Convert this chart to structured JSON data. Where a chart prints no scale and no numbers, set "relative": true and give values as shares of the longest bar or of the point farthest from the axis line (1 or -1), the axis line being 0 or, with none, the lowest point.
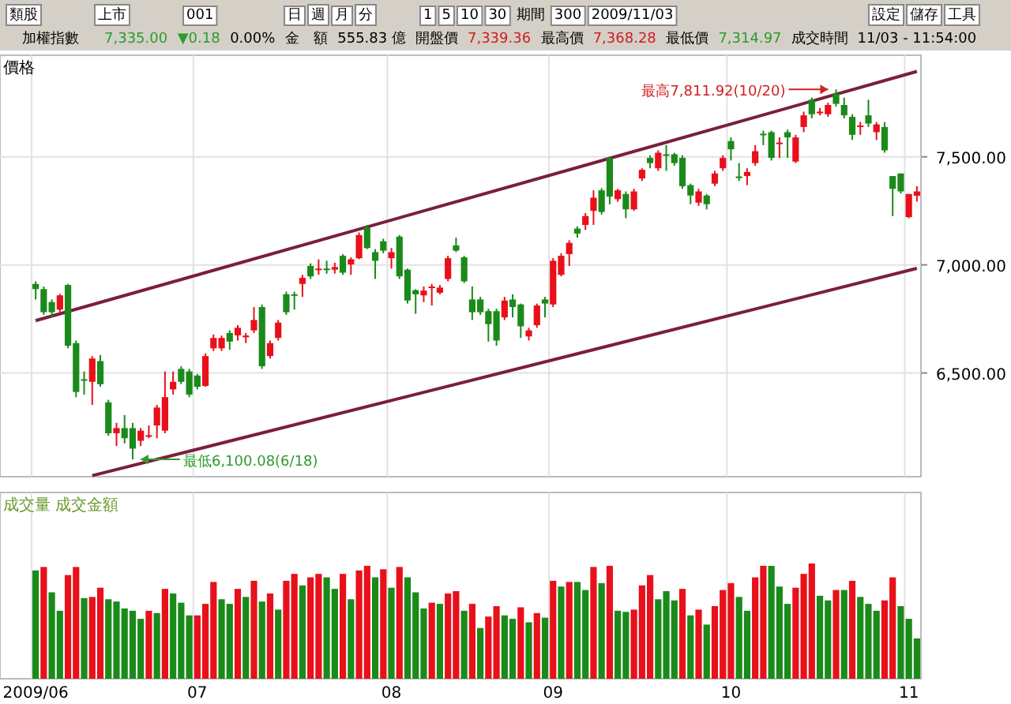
{
  "chart_data": [
    {
      "type": "candlestick",
      "ylabel": "價格",
      "categories": [
        "2009/06",
        null,
        null,
        null,
        null,
        null,
        null,
        null,
        null,
        null,
        null,
        null,
        null,
        null,
        null,
        null,
        null,
        null,
        null,
        null,
        "07",
        null,
        null,
        null,
        null,
        null,
        null,
        null,
        null,
        null,
        null,
        null,
        null,
        null,
        null,
        null,
        null,
        null,
        null,
        null,
        null,
        null,
        null,
        null,
        "08",
        null,
        null,
        null,
        null,
        null,
        null,
        null,
        null,
        null,
        null,
        null,
        null,
        null,
        null,
        null,
        null,
        null,
        null,
        null,
        "09",
        null,
        null,
        null,
        null,
        null,
        null,
        null,
        null,
        null,
        null,
        null,
        null,
        null,
        null,
        null,
        null,
        null,
        null,
        null,
        null,
        null,
        "10",
        null,
        null,
        null,
        null,
        null,
        null,
        null,
        null,
        null,
        null,
        null,
        null,
        null,
        null,
        null,
        null,
        null,
        null,
        null,
        null,
        null,
        "11",
        null
      ],
      "ohlc": [
        [
          6912,
          6924,
          6840,
          6888
        ],
        [
          6888,
          6900,
          6769,
          6781
        ],
        [
          6828,
          6840,
          6757,
          6781
        ],
        [
          6793,
          6866,
          6781,
          6859
        ],
        [
          6907,
          6912,
          6614,
          6626
        ],
        [
          6638,
          6650,
          6388,
          6412
        ],
        [
          6471,
          6507,
          6400,
          6466
        ],
        [
          6459,
          6578,
          6352,
          6567
        ],
        [
          6555,
          6583,
          6436,
          6448
        ],
        [
          6364,
          6376,
          6209,
          6221
        ],
        [
          6221,
          6269,
          6162,
          6245
        ],
        [
          6245,
          6305,
          6174,
          6198
        ],
        [
          6245,
          6269,
          6100.08,
          6150
        ],
        [
          6186,
          6245,
          6162,
          6233
        ],
        [
          6209,
          6257,
          6198,
          6212
        ],
        [
          6257,
          6352,
          6198,
          6340
        ],
        [
          6233,
          6507,
          6221,
          6388
        ],
        [
          6424,
          6507,
          6400,
          6459
        ],
        [
          6519,
          6531,
          6448,
          6459
        ],
        [
          6507,
          6519,
          6388,
          6400
        ],
        [
          6488,
          6495,
          6424,
          6436
        ],
        [
          6440,
          6590,
          6436,
          6578
        ],
        [
          6614,
          6678,
          6602,
          6662
        ],
        [
          6614,
          6673,
          6602,
          6662
        ],
        [
          6685,
          6697,
          6607,
          6645
        ],
        [
          6674,
          6721,
          6650,
          6709
        ],
        [
          6665,
          6685,
          6638,
          6673
        ],
        [
          6697,
          6805,
          6685,
          6745
        ],
        [
          6805,
          6817,
          6519,
          6531
        ],
        [
          6578,
          6650,
          6567,
          6638
        ],
        [
          6662,
          6745,
          6650,
          6733
        ],
        [
          6864,
          6876,
          6769,
          6781
        ],
        [
          6864,
          6876,
          6793,
          6857
        ],
        [
          6912,
          6954,
          6852,
          6940
        ],
        [
          6995,
          7007,
          6935,
          6947
        ],
        [
          6980,
          7026,
          6954,
          6983
        ],
        [
          6983,
          7019,
          6959,
          6978
        ],
        [
          6978,
          7010,
          6960,
          6990
        ],
        [
          7042,
          7050,
          6954,
          6964
        ],
        [
          7002,
          7035,
          6954,
          7026
        ],
        [
          7031,
          7150,
          7026,
          7138
        ],
        [
          7173,
          7185,
          7073,
          7078
        ],
        [
          7059,
          7073,
          6935,
          7019
        ],
        [
          7109,
          7121,
          7054,
          7066
        ],
        [
          7031,
          7078,
          6983,
          7059
        ],
        [
          7131,
          7138,
          6935,
          6947
        ],
        [
          6978,
          6983,
          6821,
          6835
        ],
        [
          6883,
          6888,
          6774,
          6864
        ],
        [
          6859,
          6900,
          6828,
          6881
        ],
        [
          6900,
          6912,
          6812,
          6900
        ],
        [
          6871,
          6907,
          6864,
          6895
        ],
        [
          6935,
          7042,
          6924,
          7031
        ],
        [
          7090,
          7126,
          7059,
          7066
        ],
        [
          7035,
          7042,
          6916,
          6924
        ],
        [
          6840,
          6900,
          6745,
          6781
        ],
        [
          6840,
          6852,
          6769,
          6781
        ],
        [
          6786,
          6797,
          6645,
          6726
        ],
        [
          6786,
          6797,
          6626,
          6650
        ],
        [
          6757,
          6852,
          6745,
          6835
        ],
        [
          6840,
          6864,
          6757,
          6805
        ],
        [
          6817,
          6821,
          6662,
          6716
        ],
        [
          6669,
          6709,
          6650,
          6697
        ],
        [
          6721,
          6821,
          6709,
          6812
        ],
        [
          6840,
          6852,
          6757,
          6821
        ],
        [
          6817,
          7031,
          6805,
          7019
        ],
        [
          6954,
          7054,
          6947,
          7042
        ],
        [
          7050,
          7114,
          6995,
          7102
        ],
        [
          7168,
          7178,
          7126,
          7145
        ],
        [
          7185,
          7240,
          7162,
          7226
        ],
        [
          7250,
          7345,
          7185,
          7311
        ],
        [
          7345,
          7355,
          7233,
          7245
        ],
        [
          7495,
          7500,
          7280,
          7316
        ],
        [
          7304,
          7352,
          7292,
          7345
        ],
        [
          7328,
          7340,
          7216,
          7257
        ],
        [
          7257,
          7352,
          7250,
          7340
        ],
        [
          7400,
          7447,
          7388,
          7440
        ],
        [
          7495,
          7507,
          7447,
          7471
        ],
        [
          7447,
          7530,
          7435,
          7519
        ],
        [
          7512,
          7554,
          7435,
          7510
        ],
        [
          7512,
          7519,
          7459,
          7471
        ],
        [
          7495,
          7507,
          7352,
          7364
        ],
        [
          7369,
          7376,
          7281,
          7321
        ],
        [
          7288,
          7352,
          7273,
          7340
        ],
        [
          7321,
          7328,
          7257,
          7281
        ],
        [
          7376,
          7435,
          7364,
          7423
        ],
        [
          7447,
          7507,
          7435,
          7495
        ],
        [
          7573,
          7590,
          7483,
          7535
        ],
        [
          7409,
          7471,
          7388,
          7407
        ],
        [
          7411,
          7447,
          7369,
          7430
        ],
        [
          7471,
          7554,
          7459,
          7526
        ],
        [
          7607,
          7621,
          7554,
          7600
        ],
        [
          7614,
          7621,
          7483,
          7495
        ],
        [
          7566,
          7590,
          7495,
          7566
        ],
        [
          7614,
          7626,
          7495,
          7590
        ],
        [
          7478,
          7602,
          7471,
          7590
        ],
        [
          7638,
          7709,
          7614,
          7692
        ],
        [
          7764,
          7774,
          7678,
          7697
        ],
        [
          7704,
          7726,
          7692,
          7709
        ],
        [
          7697,
          7750,
          7685,
          7740
        ],
        [
          7792,
          7811.92,
          7733,
          7745
        ],
        [
          7740,
          7774,
          7678,
          7692
        ],
        [
          7685,
          7697,
          7578,
          7602
        ],
        [
          7645,
          7661,
          7602,
          7645
        ],
        [
          7692,
          7764,
          7638,
          7654
        ],
        [
          7614,
          7661,
          7578,
          7650
        ],
        [
          7638,
          7661,
          7519,
          7530
        ],
        [
          7411,
          7411,
          7226,
          7352
        ],
        [
          7423,
          7423,
          7330,
          7340
        ],
        [
          7221,
          7328,
          7216,
          7328
        ],
        [
          7320,
          7364,
          7293,
          7340
        ]
      ],
      "series": [
        {
          "type": "line",
          "color": "#7a1f3d",
          "values": [
            6742,
            null,
            null,
            null,
            null,
            null,
            null,
            null,
            null,
            null,
            null,
            null,
            null,
            null,
            null,
            null,
            null,
            null,
            null,
            null,
            null,
            null,
            null,
            null,
            null,
            null,
            null,
            null,
            null,
            null,
            null,
            null,
            null,
            null,
            null,
            null,
            null,
            null,
            null,
            null,
            null,
            null,
            null,
            null,
            null,
            null,
            null,
            null,
            null,
            null,
            null,
            null,
            null,
            null,
            null,
            null,
            null,
            null,
            null,
            null,
            null,
            null,
            null,
            null,
            null,
            null,
            null,
            null,
            null,
            null,
            null,
            null,
            null,
            null,
            null,
            null,
            null,
            null,
            null,
            null,
            null,
            null,
            null,
            null,
            null,
            null,
            null,
            null,
            null,
            null,
            null,
            null,
            null,
            null,
            null,
            null,
            null,
            null,
            null,
            null,
            null,
            null,
            null,
            null,
            null,
            null,
            null,
            null,
            null,
            7895
          ]
        },
        {
          "type": "line",
          "color": "#7a1f3d",
          "values": [
            null,
            null,
            null,
            null,
            null,
            null,
            null,
            6025,
            null,
            null,
            null,
            null,
            null,
            null,
            null,
            null,
            null,
            null,
            null,
            null,
            null,
            null,
            null,
            null,
            null,
            null,
            null,
            null,
            null,
            null,
            null,
            null,
            null,
            null,
            null,
            null,
            null,
            null,
            null,
            null,
            null,
            null,
            null,
            null,
            null,
            null,
            null,
            null,
            null,
            null,
            null,
            null,
            null,
            null,
            null,
            null,
            null,
            null,
            null,
            null,
            null,
            null,
            null,
            null,
            null,
            null,
            null,
            null,
            null,
            null,
            null,
            null,
            null,
            null,
            null,
            null,
            null,
            null,
            null,
            null,
            null,
            null,
            null,
            null,
            null,
            null,
            null,
            null,
            null,
            null,
            null,
            null,
            null,
            null,
            null,
            null,
            null,
            null,
            null,
            null,
            null,
            null,
            null,
            null,
            null,
            null,
            null,
            null,
            null,
            6984
          ]
        }
      ],
      "annotations": [
        "類股",
        "上市",
        "001",
        "日",
        "週",
        "月",
        "分",
        "1",
        "5",
        "10",
        "30",
        "期間",
        "300",
        "2009/11/03",
        "設定",
        "儲存",
        "工具",
        "加權指數",
        "7,335.00",
        "▼0.18",
        "0.00%",
        "金　額",
        "555.83 億",
        "開盤價",
        "7,339.36",
        "最高價",
        "7,368.28",
        "最低價",
        "7,314.97",
        "成交時間",
        "11/03 - 11:54:00",
        "最高7,811.92(10/20)",
        "最低6,100.08(6/18)"
      ],
      "ylim": [
        6020,
        7970
      ],
      "yticks": [
        {
          "value": 6500,
          "label": "6,500.00"
        },
        {
          "value": 7000,
          "label": "7,000.00"
        },
        {
          "value": 7500,
          "label": "7,500.00"
        }
      ],
      "grid": true,
      "tick_labels": "y"
    },
    {
      "type": "bar",
      "relative": true,
      "ylabel": "成交量 成交金額",
      "categories": [
        "2009/06",
        null,
        null,
        null,
        null,
        null,
        null,
        null,
        null,
        null,
        null,
        null,
        null,
        null,
        null,
        null,
        null,
        null,
        null,
        null,
        "07",
        null,
        null,
        null,
        null,
        null,
        null,
        null,
        null,
        null,
        null,
        null,
        null,
        null,
        null,
        null,
        null,
        null,
        null,
        null,
        null,
        null,
        null,
        null,
        "08",
        null,
        null,
        null,
        null,
        null,
        null,
        null,
        null,
        null,
        null,
        null,
        null,
        null,
        null,
        null,
        null,
        null,
        null,
        null,
        "09",
        null,
        null,
        null,
        null,
        null,
        null,
        null,
        null,
        null,
        null,
        null,
        null,
        null,
        null,
        null,
        null,
        null,
        null,
        null,
        null,
        null,
        "10",
        null,
        null,
        null,
        null,
        null,
        null,
        null,
        null,
        null,
        null,
        null,
        null,
        null,
        null,
        null,
        null,
        null,
        null,
        null,
        null,
        null,
        "11",
        null
      ],
      "values": [
        0.94,
        0.97,
        0.75,
        0.59,
        0.9,
        0.97,
        0.7,
        0.71,
        0.79,
        0.69,
        0.67,
        0.61,
        0.59,
        0.52,
        0.59,
        0.57,
        0.78,
        0.74,
        0.66,
        0.55,
        0.55,
        0.65,
        0.84,
        0.69,
        0.65,
        0.78,
        0.71,
        0.85,
        0.67,
        0.74,
        0.6,
        0.85,
        0.91,
        0.81,
        0.88,
        0.91,
        0.88,
        0.78,
        0.91,
        0.69,
        0.94,
        0.98,
        0.88,
        0.95,
        0.79,
        0.97,
        0.88,
        0.75,
        0.61,
        0.66,
        0.65,
        0.74,
        0.76,
        0.59,
        0.65,
        0.44,
        0.54,
        0.63,
        0.55,
        0.52,
        0.62,
        0.49,
        0.57,
        0.53,
        0.85,
        0.8,
        0.84,
        0.84,
        0.77,
        0.97,
        0.83,
        0.98,
        0.59,
        0.58,
        0.6,
        0.81,
        0.9,
        0.69,
        0.76,
        0.68,
        0.78,
        0.55,
        0.6,
        0.47,
        0.63,
        0.77,
        0.83,
        0.71,
        0.59,
        0.88,
        0.98,
        0.98,
        0.8,
        0.65,
        0.79,
        0.91,
        1,
        0.72,
        0.68,
        0.77,
        0.77,
        0.85,
        0.71,
        0.65,
        0.59,
        0.68,
        0.88,
        0.63,
        0.52,
        0.35
      ],
      "colors": [
        "#1a8a1a",
        "#e8101a",
        "#1a8a1a",
        "#1a8a1a",
        "#e8101a",
        "#e8101a",
        "#1a8a1a",
        "#e8101a",
        "#e8101a",
        "#1a8a1a",
        "#1a8a1a",
        "#1a8a1a",
        "#1a8a1a",
        "#1a8a1a",
        "#e8101a",
        "#1a8a1a",
        "#e8101a",
        "#1a8a1a",
        "#1a8a1a",
        "#1a8a1a",
        "#e8101a",
        "#e8101a",
        "#e8101a",
        "#1a8a1a",
        "#1a8a1a",
        "#e8101a",
        "#1a8a1a",
        "#e8101a",
        "#1a8a1a",
        "#e8101a",
        "#1a8a1a",
        "#e8101a",
        "#e8101a",
        "#1a8a1a",
        "#e8101a",
        "#e8101a",
        "#1a8a1a",
        "#1a8a1a",
        "#e8101a",
        "#1a8a1a",
        "#e8101a",
        "#e8101a",
        "#1a8a1a",
        "#e8101a",
        "#1a8a1a",
        "#e8101a",
        "#1a8a1a",
        "#1a8a1a",
        "#1a8a1a",
        "#e8101a",
        "#1a8a1a",
        "#e8101a",
        "#e8101a",
        "#1a8a1a",
        "#e8101a",
        "#1a8a1a",
        "#e8101a",
        "#e8101a",
        "#1a8a1a",
        "#1a8a1a",
        "#e8101a",
        "#1a8a1a",
        "#e8101a",
        "#1a8a1a",
        "#e8101a",
        "#1a8a1a",
        "#e8101a",
        "#1a8a1a",
        "#1a8a1a",
        "#e8101a",
        "#1a8a1a",
        "#e8101a",
        "#1a8a1a",
        "#1a8a1a",
        "#e8101a",
        "#e8101a",
        "#e8101a",
        "#1a8a1a",
        "#1a8a1a",
        "#1a8a1a",
        "#e8101a",
        "#1a8a1a",
        "#e8101a",
        "#1a8a1a",
        "#e8101a",
        "#e8101a",
        "#e8101a",
        "#1a8a1a",
        "#1a8a1a",
        "#e8101a",
        "#e8101a",
        "#1a8a1a",
        "#1a8a1a",
        "#1a8a1a",
        "#e8101a",
        "#e8101a",
        "#e8101a",
        "#1a8a1a",
        "#1a8a1a",
        "#e8101a",
        "#1a8a1a",
        "#e8101a",
        "#1a8a1a",
        "#1a8a1a",
        "#1a8a1a",
        "#e8101a",
        "#e8101a",
        "#1a8a1a",
        "#1a8a1a",
        "#1a8a1a"
      ],
      "grid": "x",
      "tick_labels": "x"
    }
  ]
}
